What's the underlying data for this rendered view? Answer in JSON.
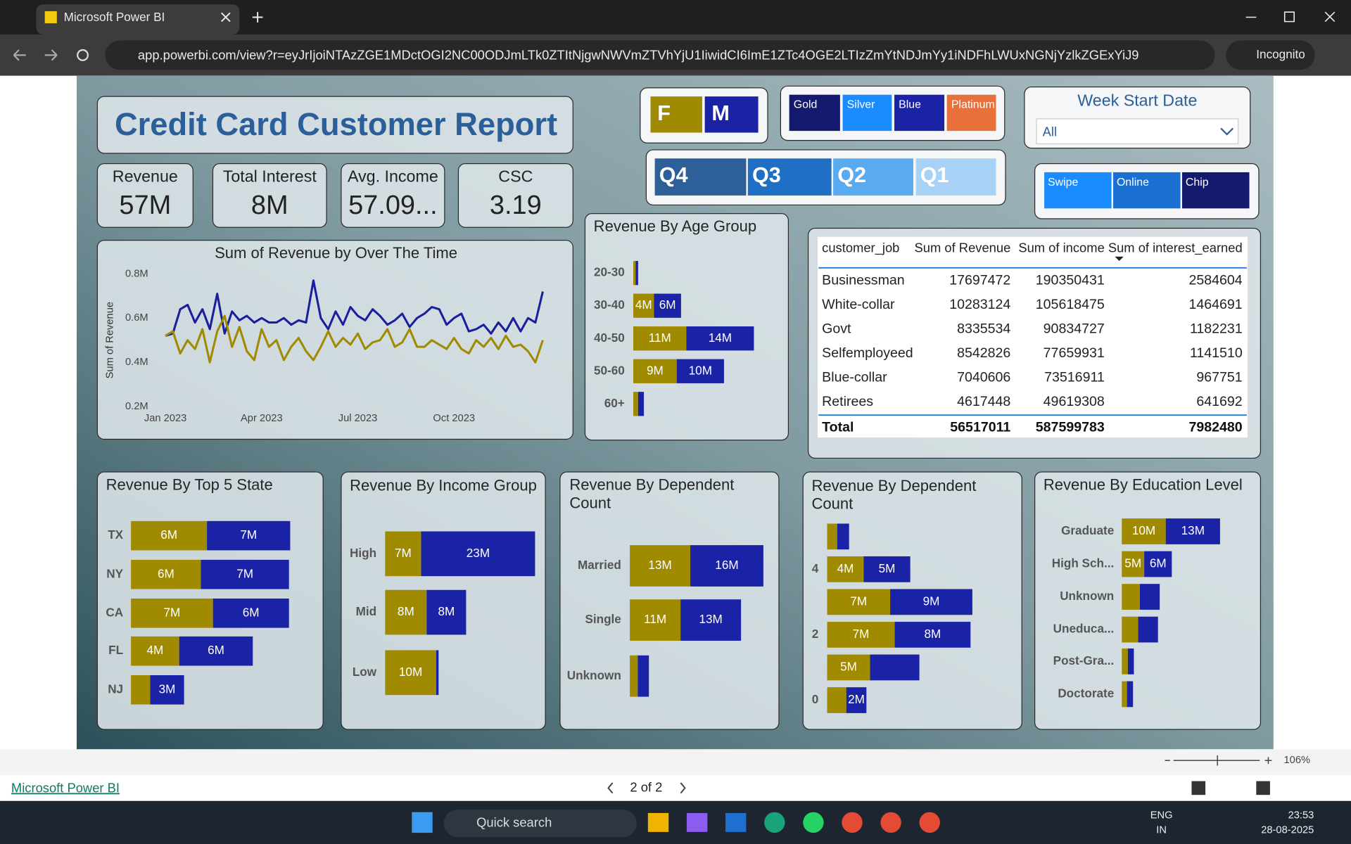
{
  "browser": {
    "tab_title": "Microsoft Power BI",
    "url": "app.powerbi.com/view?r=eyJrIjoiNTAzZGE1MDctOGI2NC00ODJmLTk0ZTItNjgwNWVmZTVhYjU1IiwidCI6ImE1ZTc4OGE2LTIzZmYtNDJmYy1iNDFhLWUxNGNjYzlkZGExYiJ9",
    "incognito": "Incognito"
  },
  "report": {
    "title": "Credit Card Customer Report",
    "kpis": [
      {
        "label": "Revenue",
        "value": "57M"
      },
      {
        "label": "Total Interest",
        "value": "8M"
      },
      {
        "label": "Avg. Income",
        "value": "57.09..."
      },
      {
        "label": "CSC",
        "value": "3.19"
      }
    ],
    "gender": [
      "F",
      "M"
    ],
    "card_category": [
      "Gold",
      "Silver",
      "Blue",
      "Platinum"
    ],
    "quarter": [
      "Q4",
      "Q3",
      "Q2",
      "Q1"
    ],
    "week_start": {
      "title": "Week Start Date",
      "value": "All"
    },
    "use_chip": [
      "Swipe",
      "Online",
      "Chip"
    ]
  },
  "line_chart": {
    "type": "line",
    "title": "Sum of Revenue by Over The Time",
    "y_label": "Sum of Revenue",
    "ylim": [
      0.2,
      0.8
    ],
    "yticks": [
      {
        "value": 0.2,
        "label": "0.2M"
      },
      {
        "value": 0.4,
        "label": "0.4M"
      },
      {
        "value": 0.6,
        "label": "0.6M"
      },
      {
        "value": 0.8,
        "label": "0.8M"
      }
    ],
    "xlim": [
      0,
      51
    ],
    "xticks": [
      {
        "value": 0,
        "label": "Jan 2023"
      },
      {
        "value": 13,
        "label": "Apr 2023"
      },
      {
        "value": 26,
        "label": "Jul 2023"
      },
      {
        "value": 39,
        "label": "Oct 2023"
      }
    ],
    "series": [
      {
        "color": "#1a1f9e",
        "values": [
          0.52,
          0.53,
          0.64,
          0.66,
          0.58,
          0.64,
          0.55,
          0.71,
          0.53,
          0.63,
          0.59,
          0.61,
          0.58,
          0.6,
          0.58,
          0.58,
          0.6,
          0.57,
          0.59,
          0.58,
          0.77,
          0.6,
          0.55,
          0.63,
          0.57,
          0.65,
          0.61,
          0.59,
          0.64,
          0.61,
          0.57,
          0.59,
          0.62,
          0.56,
          0.6,
          0.62,
          0.65,
          0.64,
          0.57,
          0.6,
          0.62,
          0.54,
          0.55,
          0.57,
          0.53,
          0.58,
          0.54,
          0.6,
          0.54,
          0.6,
          0.58,
          0.72
        ]
      },
      {
        "color": "#a08a00",
        "values": [
          0.52,
          0.54,
          0.44,
          0.5,
          0.46,
          0.55,
          0.4,
          0.54,
          0.61,
          0.47,
          0.56,
          0.45,
          0.41,
          0.55,
          0.47,
          0.5,
          0.41,
          0.47,
          0.51,
          0.45,
          0.41,
          0.47,
          0.54,
          0.47,
          0.51,
          0.48,
          0.53,
          0.46,
          0.49,
          0.5,
          0.55,
          0.47,
          0.49,
          0.55,
          0.47,
          0.47,
          0.5,
          0.48,
          0.46,
          0.51,
          0.46,
          0.44,
          0.5,
          0.47,
          0.51,
          0.46,
          0.52,
          0.47,
          0.48,
          0.45,
          0.4,
          0.5
        ]
      }
    ]
  },
  "age_chart": {
    "type": "bar",
    "title": "Revenue By Age Group",
    "categories": [
      "20-30",
      "30-40",
      "40-50",
      "50-60",
      "60+"
    ],
    "series": [
      {
        "color": "#a08a00",
        "values": [
          0.5,
          4.3,
          11,
          9,
          1
        ],
        "value_labels": [
          null,
          "4M",
          "11M",
          "9M",
          null
        ]
      },
      {
        "color": "#1a22a6",
        "values": [
          0.5,
          5.6,
          14,
          9.8,
          1.2
        ],
        "value_labels": [
          null,
          "6M",
          "14M",
          "10M",
          null
        ]
      }
    ]
  },
  "table": {
    "columns": [
      "customer_job",
      "Sum of Revenue",
      "Sum of income",
      "Sum of interest_earned"
    ],
    "rows": [
      [
        "Businessman",
        17697472,
        190350431,
        2584604
      ],
      [
        "White-collar",
        10283124,
        105618475,
        1464691
      ],
      [
        "Govt",
        8335534,
        90834727,
        1182231
      ],
      [
        "Selfemployeed",
        8542826,
        77659931,
        1141510
      ],
      [
        "Blue-collar",
        7040606,
        73516911,
        967751
      ],
      [
        "Retirees",
        4617448,
        49619308,
        641692
      ]
    ],
    "total": [
      "Total",
      56517011,
      587599783,
      7982480
    ]
  },
  "state_chart": {
    "type": "bar",
    "title": "Revenue By Top 5 State",
    "categories": [
      "TX",
      "NY",
      "CA",
      "FL",
      "NJ"
    ],
    "series": [
      {
        "color": "#a08a00",
        "values": [
          6.3,
          5.8,
          6.8,
          4,
          1.6
        ],
        "value_labels": [
          "6M",
          "6M",
          "7M",
          "4M",
          null
        ]
      },
      {
        "color": "#1a22a6",
        "values": [
          6.9,
          7.3,
          6.3,
          6.1,
          2.8
        ],
        "value_labels": [
          "7M",
          "7M",
          "6M",
          "6M",
          "3M"
        ]
      }
    ]
  },
  "income_chart": {
    "type": "bar",
    "title": "Revenue By Income Group",
    "categories": [
      "High",
      "Mid",
      "Low"
    ],
    "series": [
      {
        "color": "#a08a00",
        "values": [
          7.2,
          8.3,
          10.2
        ],
        "value_labels": [
          "7M",
          "8M",
          "10M"
        ]
      },
      {
        "color": "#1a22a6",
        "values": [
          22.8,
          7.9,
          0.5
        ],
        "value_labels": [
          "23M",
          "8M",
          null
        ]
      }
    ]
  },
  "marital_chart": {
    "type": "bar",
    "title": "Revenue By Dependent Count",
    "categories": [
      "Married",
      "Single",
      "Unknown"
    ],
    "series": [
      {
        "color": "#a08a00",
        "values": [
          13,
          10.9,
          1.7
        ],
        "value_labels": [
          "13M",
          "11M",
          null
        ]
      },
      {
        "color": "#1a22a6",
        "values": [
          15.7,
          13,
          2.4
        ],
        "value_labels": [
          "16M",
          "13M",
          null
        ]
      }
    ]
  },
  "dependent_chart": {
    "type": "bar",
    "title": "Revenue By Dependent Count",
    "categories": [
      null,
      "4",
      null,
      "2",
      null,
      "0"
    ],
    "series": [
      {
        "color": "#a08a00",
        "values": [
          1.1,
          4,
          6.9,
          7.4,
          4.7,
          2.1
        ],
        "value_labels": [
          null,
          "4M",
          "7M",
          "7M",
          "5M",
          null
        ]
      },
      {
        "color": "#1a22a6",
        "values": [
          1.3,
          5.1,
          9,
          8.3,
          5.4,
          2.2
        ],
        "value_labels": [
          null,
          "5M",
          "9M",
          "8M",
          null,
          "2M"
        ]
      }
    ]
  },
  "education_chart": {
    "type": "bar",
    "title": "Revenue By Education Level",
    "categories": [
      "Graduate",
      "High Sch...",
      "Unknown",
      "Uneduca...",
      "Post-Gra...",
      "Doctorate"
    ],
    "series": [
      {
        "color": "#a08a00",
        "values": [
          10.2,
          5.2,
          4.2,
          3.8,
          1.4,
          1.2
        ],
        "value_labels": [
          "10M",
          "5M",
          null,
          null,
          null,
          null
        ]
      },
      {
        "color": "#1a22a6",
        "values": [
          12.6,
          6.4,
          4.6,
          4.6,
          1.4,
          1.4
        ],
        "value_labels": [
          "13M",
          "6M",
          null,
          null,
          null,
          null
        ]
      }
    ]
  },
  "footer": {
    "zoom": "106%",
    "link": "Microsoft Power BI",
    "page": "2 of 2"
  },
  "taskbar": {
    "search": "Quick search",
    "language": "ENG",
    "region": "IN",
    "time": "23:53",
    "date": "28-08-2025"
  }
}
